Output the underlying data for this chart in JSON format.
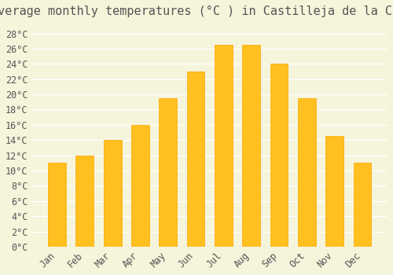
{
  "title": "Average monthly temperatures (°C ) in Castilleja de la Cuesta",
  "months": [
    "Jan",
    "Feb",
    "Mar",
    "Apr",
    "May",
    "Jun",
    "Jul",
    "Aug",
    "Sep",
    "Oct",
    "Nov",
    "Dec"
  ],
  "temperatures": [
    11,
    12,
    14,
    16,
    19.5,
    23,
    26.5,
    26.5,
    24,
    19.5,
    14.5,
    11
  ],
  "bar_color": "#FFC020",
  "bar_edge_color": "#FFA500",
  "background_color": "#F5F5DC",
  "grid_color": "#FFFFFF",
  "text_color": "#555555",
  "title_fontsize": 11,
  "tick_fontsize": 8.5,
  "ylim": [
    0,
    29
  ],
  "yticks": [
    0,
    2,
    4,
    6,
    8,
    10,
    12,
    14,
    16,
    18,
    20,
    22,
    24,
    26,
    28
  ]
}
